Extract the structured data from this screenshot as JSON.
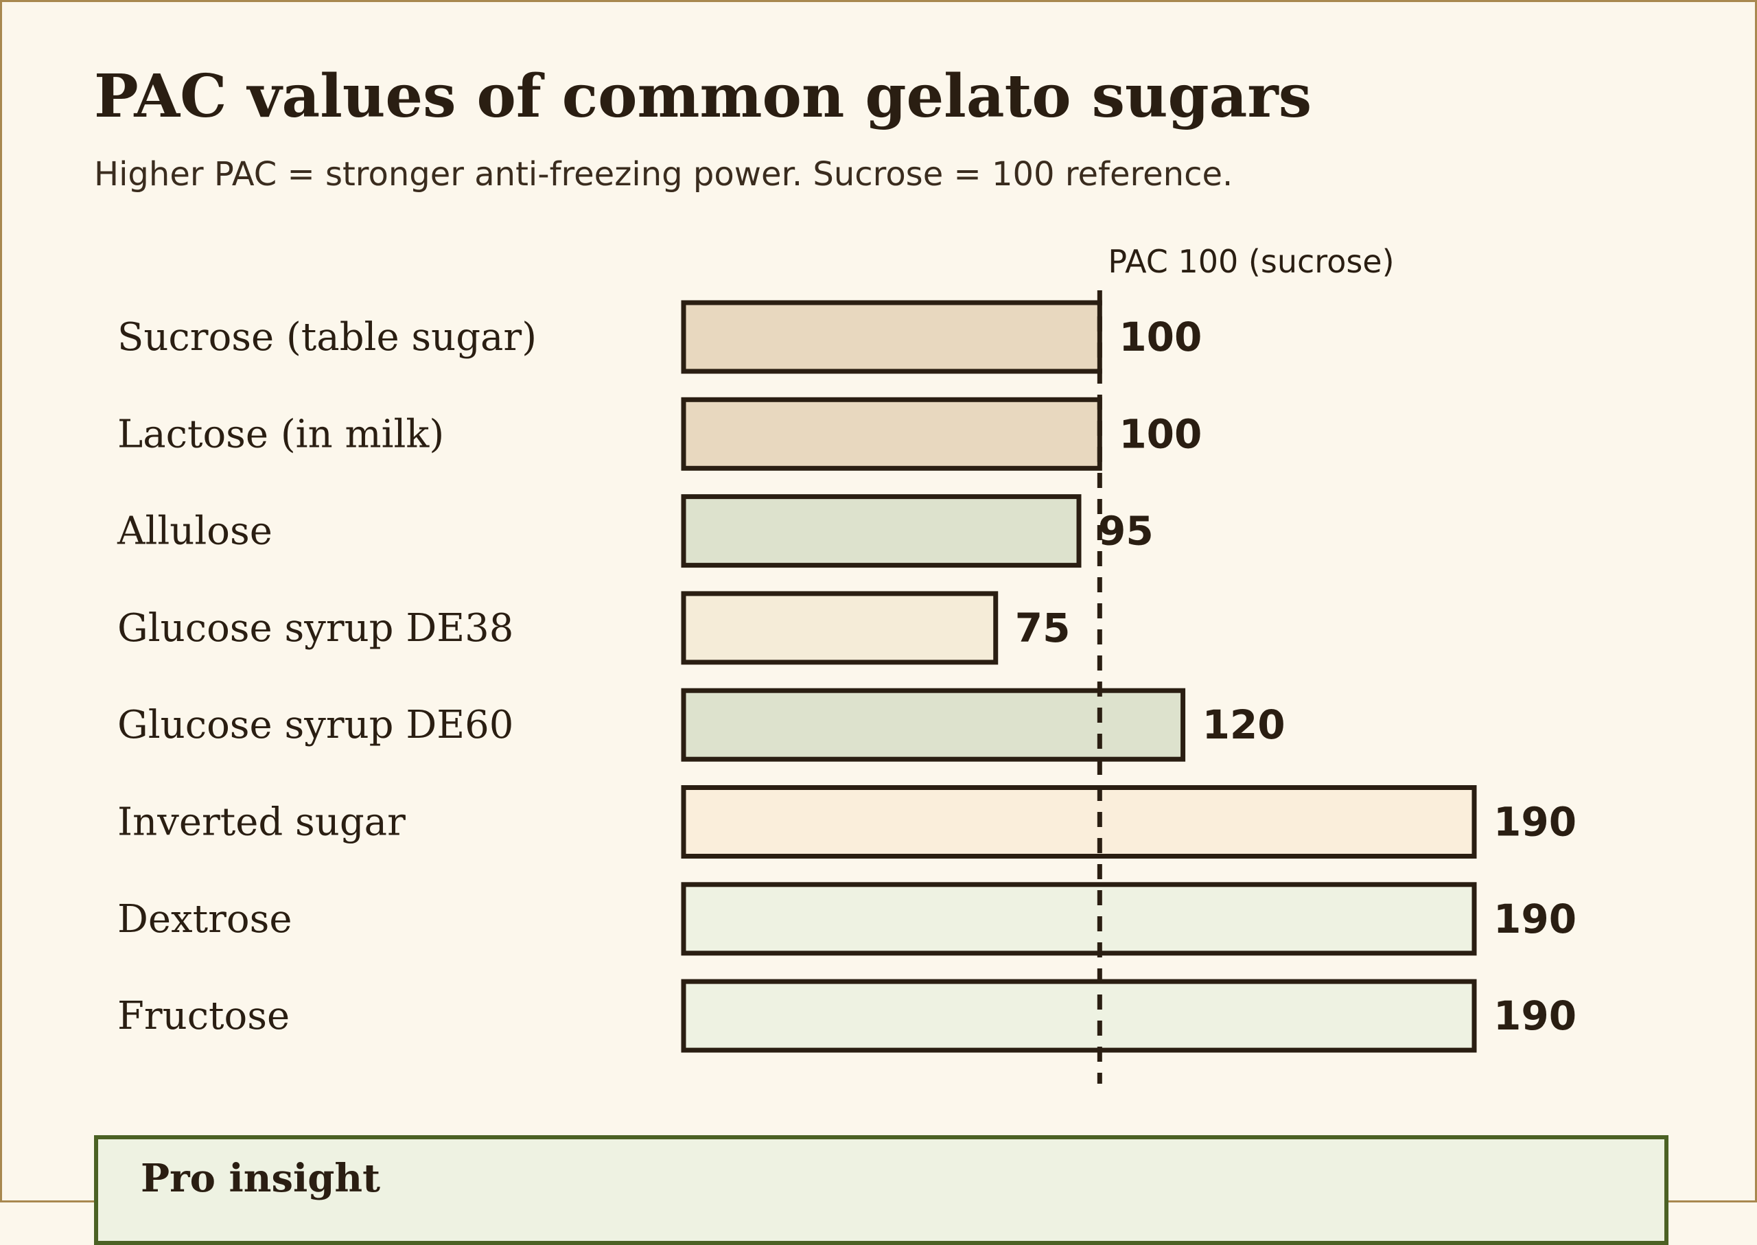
{
  "title": "PAC values of common gelato sugars",
  "subtitle": "Higher PAC = stronger anti-freezing power. Sucrose = 100 reference.",
  "chart_data": {
    "type": "bar",
    "orientation": "horizontal",
    "categories": [
      "Sucrose (table sugar)",
      "Lactose (in milk)",
      "Allulose",
      "Glucose syrup DE38",
      "Glucose syrup DE60",
      "Inverted sugar",
      "Dextrose",
      "Fructose"
    ],
    "values": [
      100,
      100,
      95,
      75,
      120,
      190,
      190,
      190
    ],
    "bar_colors": [
      "#e8d8bf",
      "#e8d8bf",
      "#dde2cd",
      "#f5ecd8",
      "#dde2cd",
      "#faeedb",
      "#eef2e2",
      "#eef2e2"
    ],
    "outline_color": "#2a1e12",
    "xlim": [
      0,
      190
    ],
    "reference_line": {
      "value": 100,
      "label": "PAC 100 (sucrose)",
      "style": "dashed"
    },
    "data_labels": true,
    "grid": false,
    "legend": "none"
  },
  "insight": {
    "title": "Pro insight",
    "border_color": "#4b6124",
    "background": "#eef2e2"
  },
  "colors": {
    "background": "#fcf7ec",
    "frame_border": "#a8884f",
    "text": "#2a1e12"
  }
}
